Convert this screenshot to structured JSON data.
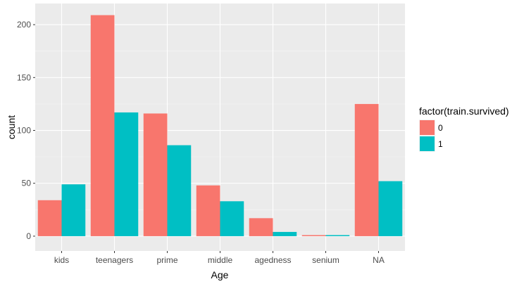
{
  "chart_data": {
    "type": "bar",
    "xlabel": "Age",
    "ylabel": "count",
    "categories": [
      "kids",
      "teenagers",
      "prime",
      "middle",
      "agedness",
      "senium",
      "NA"
    ],
    "series": [
      {
        "name": "0",
        "color": "#F8766D",
        "values": [
          34,
          209,
          116,
          48,
          17,
          1,
          125
        ]
      },
      {
        "name": "1",
        "color": "#00BFC4",
        "values": [
          49,
          117,
          86,
          33,
          4,
          1,
          52
        ]
      }
    ],
    "ylim": [
      -14,
      220
    ],
    "yticks": [
      0,
      50,
      100,
      150,
      200
    ],
    "grid": true,
    "panel_background": "#EBEBEB",
    "legend": {
      "title": "factor(train.survived)",
      "position": "right"
    }
  }
}
